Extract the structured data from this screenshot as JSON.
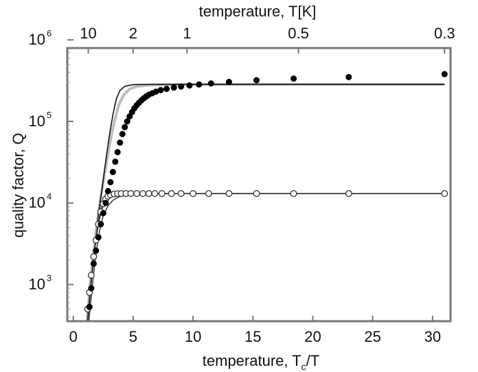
{
  "chart_data": {
    "type": "scatter",
    "xlabel": "temperature, T_c/T",
    "ylabel": "quality factor, Q",
    "top_xlabel": "temperature, T[K]",
    "xlim": [
      -0.5,
      31.5
    ],
    "ylim_log10": [
      2.55,
      5.9
    ],
    "y_scale": "log",
    "grid": false,
    "x_ticks": [
      0,
      5,
      10,
      15,
      20,
      25,
      30
    ],
    "y_ticks": [
      {
        "exponent": "3",
        "log10": 3
      },
      {
        "exponent": "4",
        "log10": 4
      },
      {
        "exponent": "5",
        "log10": 5
      },
      {
        "exponent": "6",
        "log10": 6
      }
    ],
    "top_ticks": [
      {
        "label": "10",
        "x": 1.25
      },
      {
        "label": "2",
        "x": 5.0
      },
      {
        "label": "1",
        "x": 9.5
      },
      {
        "label": "0.5",
        "x": 18.8
      },
      {
        "label": "0.3",
        "x": 31.0
      }
    ],
    "series": [
      {
        "marker": "filled-circle",
        "color": "#000000",
        "points": [
          [
            1.35,
            530
          ],
          [
            1.5,
            900
          ],
          [
            1.7,
            1800
          ],
          [
            1.9,
            2600
          ],
          [
            2.1,
            3800
          ],
          [
            2.3,
            5500
          ],
          [
            2.5,
            7500
          ],
          [
            2.7,
            10000
          ],
          [
            2.9,
            14000
          ],
          [
            3.1,
            18000
          ],
          [
            3.3,
            24000
          ],
          [
            3.5,
            32000
          ],
          [
            3.7,
            42000
          ],
          [
            3.9,
            55000
          ],
          [
            4.1,
            70000
          ],
          [
            4.3,
            85000
          ],
          [
            4.5,
            100000
          ],
          [
            4.7,
            115000
          ],
          [
            4.9,
            130000
          ],
          [
            5.1,
            145000
          ],
          [
            5.3,
            158000
          ],
          [
            5.5,
            170000
          ],
          [
            5.7,
            182000
          ],
          [
            5.9,
            193000
          ],
          [
            6.1,
            203000
          ],
          [
            6.3,
            212000
          ],
          [
            6.6,
            222000
          ],
          [
            6.9,
            232000
          ],
          [
            7.3,
            242000
          ],
          [
            7.8,
            251000
          ],
          [
            8.4,
            260000
          ],
          [
            9.0,
            268000
          ],
          [
            9.7,
            276000
          ],
          [
            10.5,
            284000
          ],
          [
            11.5,
            292000
          ],
          [
            13.0,
            305000
          ],
          [
            15.3,
            320000
          ],
          [
            18.4,
            335000
          ],
          [
            23.0,
            350000
          ],
          [
            31.0,
            380000
          ]
        ]
      },
      {
        "marker": "open-circle",
        "color": "#000000",
        "points": [
          [
            1.2,
            500
          ],
          [
            1.35,
            800
          ],
          [
            1.5,
            1300
          ],
          [
            1.7,
            2200
          ],
          [
            1.9,
            3500
          ],
          [
            2.1,
            5500
          ],
          [
            2.3,
            7800
          ],
          [
            2.5,
            9800
          ],
          [
            2.7,
            11200
          ],
          [
            2.9,
            12100
          ],
          [
            3.1,
            12600
          ],
          [
            3.4,
            12900
          ],
          [
            3.7,
            13000
          ],
          [
            4.0,
            13050
          ],
          [
            4.4,
            13050
          ],
          [
            4.8,
            13050
          ],
          [
            5.3,
            13050
          ],
          [
            5.8,
            13050
          ],
          [
            6.3,
            13050
          ],
          [
            6.8,
            13050
          ],
          [
            7.4,
            13050
          ],
          [
            8.2,
            13050
          ],
          [
            9.0,
            13050
          ],
          [
            10.0,
            13050
          ],
          [
            11.3,
            13050
          ],
          [
            13.0,
            13050
          ],
          [
            15.3,
            13050
          ],
          [
            18.4,
            13050
          ],
          [
            23.0,
            13050
          ],
          [
            31.0,
            13050
          ]
        ]
      }
    ],
    "fit_curves": [
      {
        "color": "#bdbdbd",
        "points": [
          [
            1.15,
            355
          ],
          [
            1.4,
            1000
          ],
          [
            1.7,
            2500
          ],
          [
            2.0,
            6000
          ],
          [
            2.3,
            12000
          ],
          [
            2.6,
            22000
          ],
          [
            2.9,
            40000
          ],
          [
            3.2,
            70000
          ],
          [
            3.5,
            110000
          ],
          [
            3.8,
            160000
          ],
          [
            4.2,
            210000
          ],
          [
            4.7,
            250000
          ],
          [
            5.3,
            270000
          ],
          [
            6.5,
            280000
          ],
          [
            10,
            285000
          ],
          [
            20,
            285000
          ],
          [
            31,
            285000
          ]
        ]
      },
      {
        "color": "#111111",
        "points": [
          [
            1.2,
            355
          ],
          [
            1.5,
            1100
          ],
          [
            1.8,
            2900
          ],
          [
            2.1,
            7000
          ],
          [
            2.4,
            15000
          ],
          [
            2.7,
            32000
          ],
          [
            3.0,
            65000
          ],
          [
            3.3,
            120000
          ],
          [
            3.6,
            190000
          ],
          [
            3.9,
            240000
          ],
          [
            4.3,
            270000
          ],
          [
            5.0,
            283000
          ],
          [
            6.0,
            285000
          ],
          [
            10,
            285000
          ],
          [
            20,
            285000
          ],
          [
            31,
            285000
          ]
        ]
      },
      {
        "color": "#888888",
        "points": [
          [
            1.15,
            355
          ],
          [
            1.4,
            900
          ],
          [
            1.7,
            2300
          ],
          [
            2.0,
            5000
          ],
          [
            2.3,
            8500
          ],
          [
            2.6,
            11000
          ],
          [
            2.9,
            12300
          ],
          [
            3.3,
            12900
          ],
          [
            4.0,
            13000
          ],
          [
            6.0,
            13050
          ],
          [
            31,
            13050
          ]
        ]
      },
      {
        "color": "#222222",
        "points": [
          [
            1.2,
            355
          ],
          [
            1.5,
            1100
          ],
          [
            1.8,
            2800
          ],
          [
            2.1,
            5600
          ],
          [
            2.4,
            8600
          ],
          [
            2.7,
            10700
          ],
          [
            3.0,
            11900
          ],
          [
            3.4,
            12600
          ],
          [
            4.0,
            12950
          ],
          [
            5.0,
            13050
          ],
          [
            31,
            13050
          ]
        ]
      },
      {
        "color": "#444444",
        "points": [
          [
            1.3,
            355
          ],
          [
            1.6,
            1000
          ],
          [
            1.9,
            2400
          ],
          [
            2.2,
            4600
          ],
          [
            2.5,
            7000
          ],
          [
            2.9,
            9200
          ],
          [
            3.3,
            10800
          ],
          [
            3.8,
            11900
          ],
          [
            4.5,
            12600
          ],
          [
            5.5,
            12950
          ],
          [
            7,
            13050
          ],
          [
            31,
            13050
          ]
        ]
      }
    ]
  }
}
